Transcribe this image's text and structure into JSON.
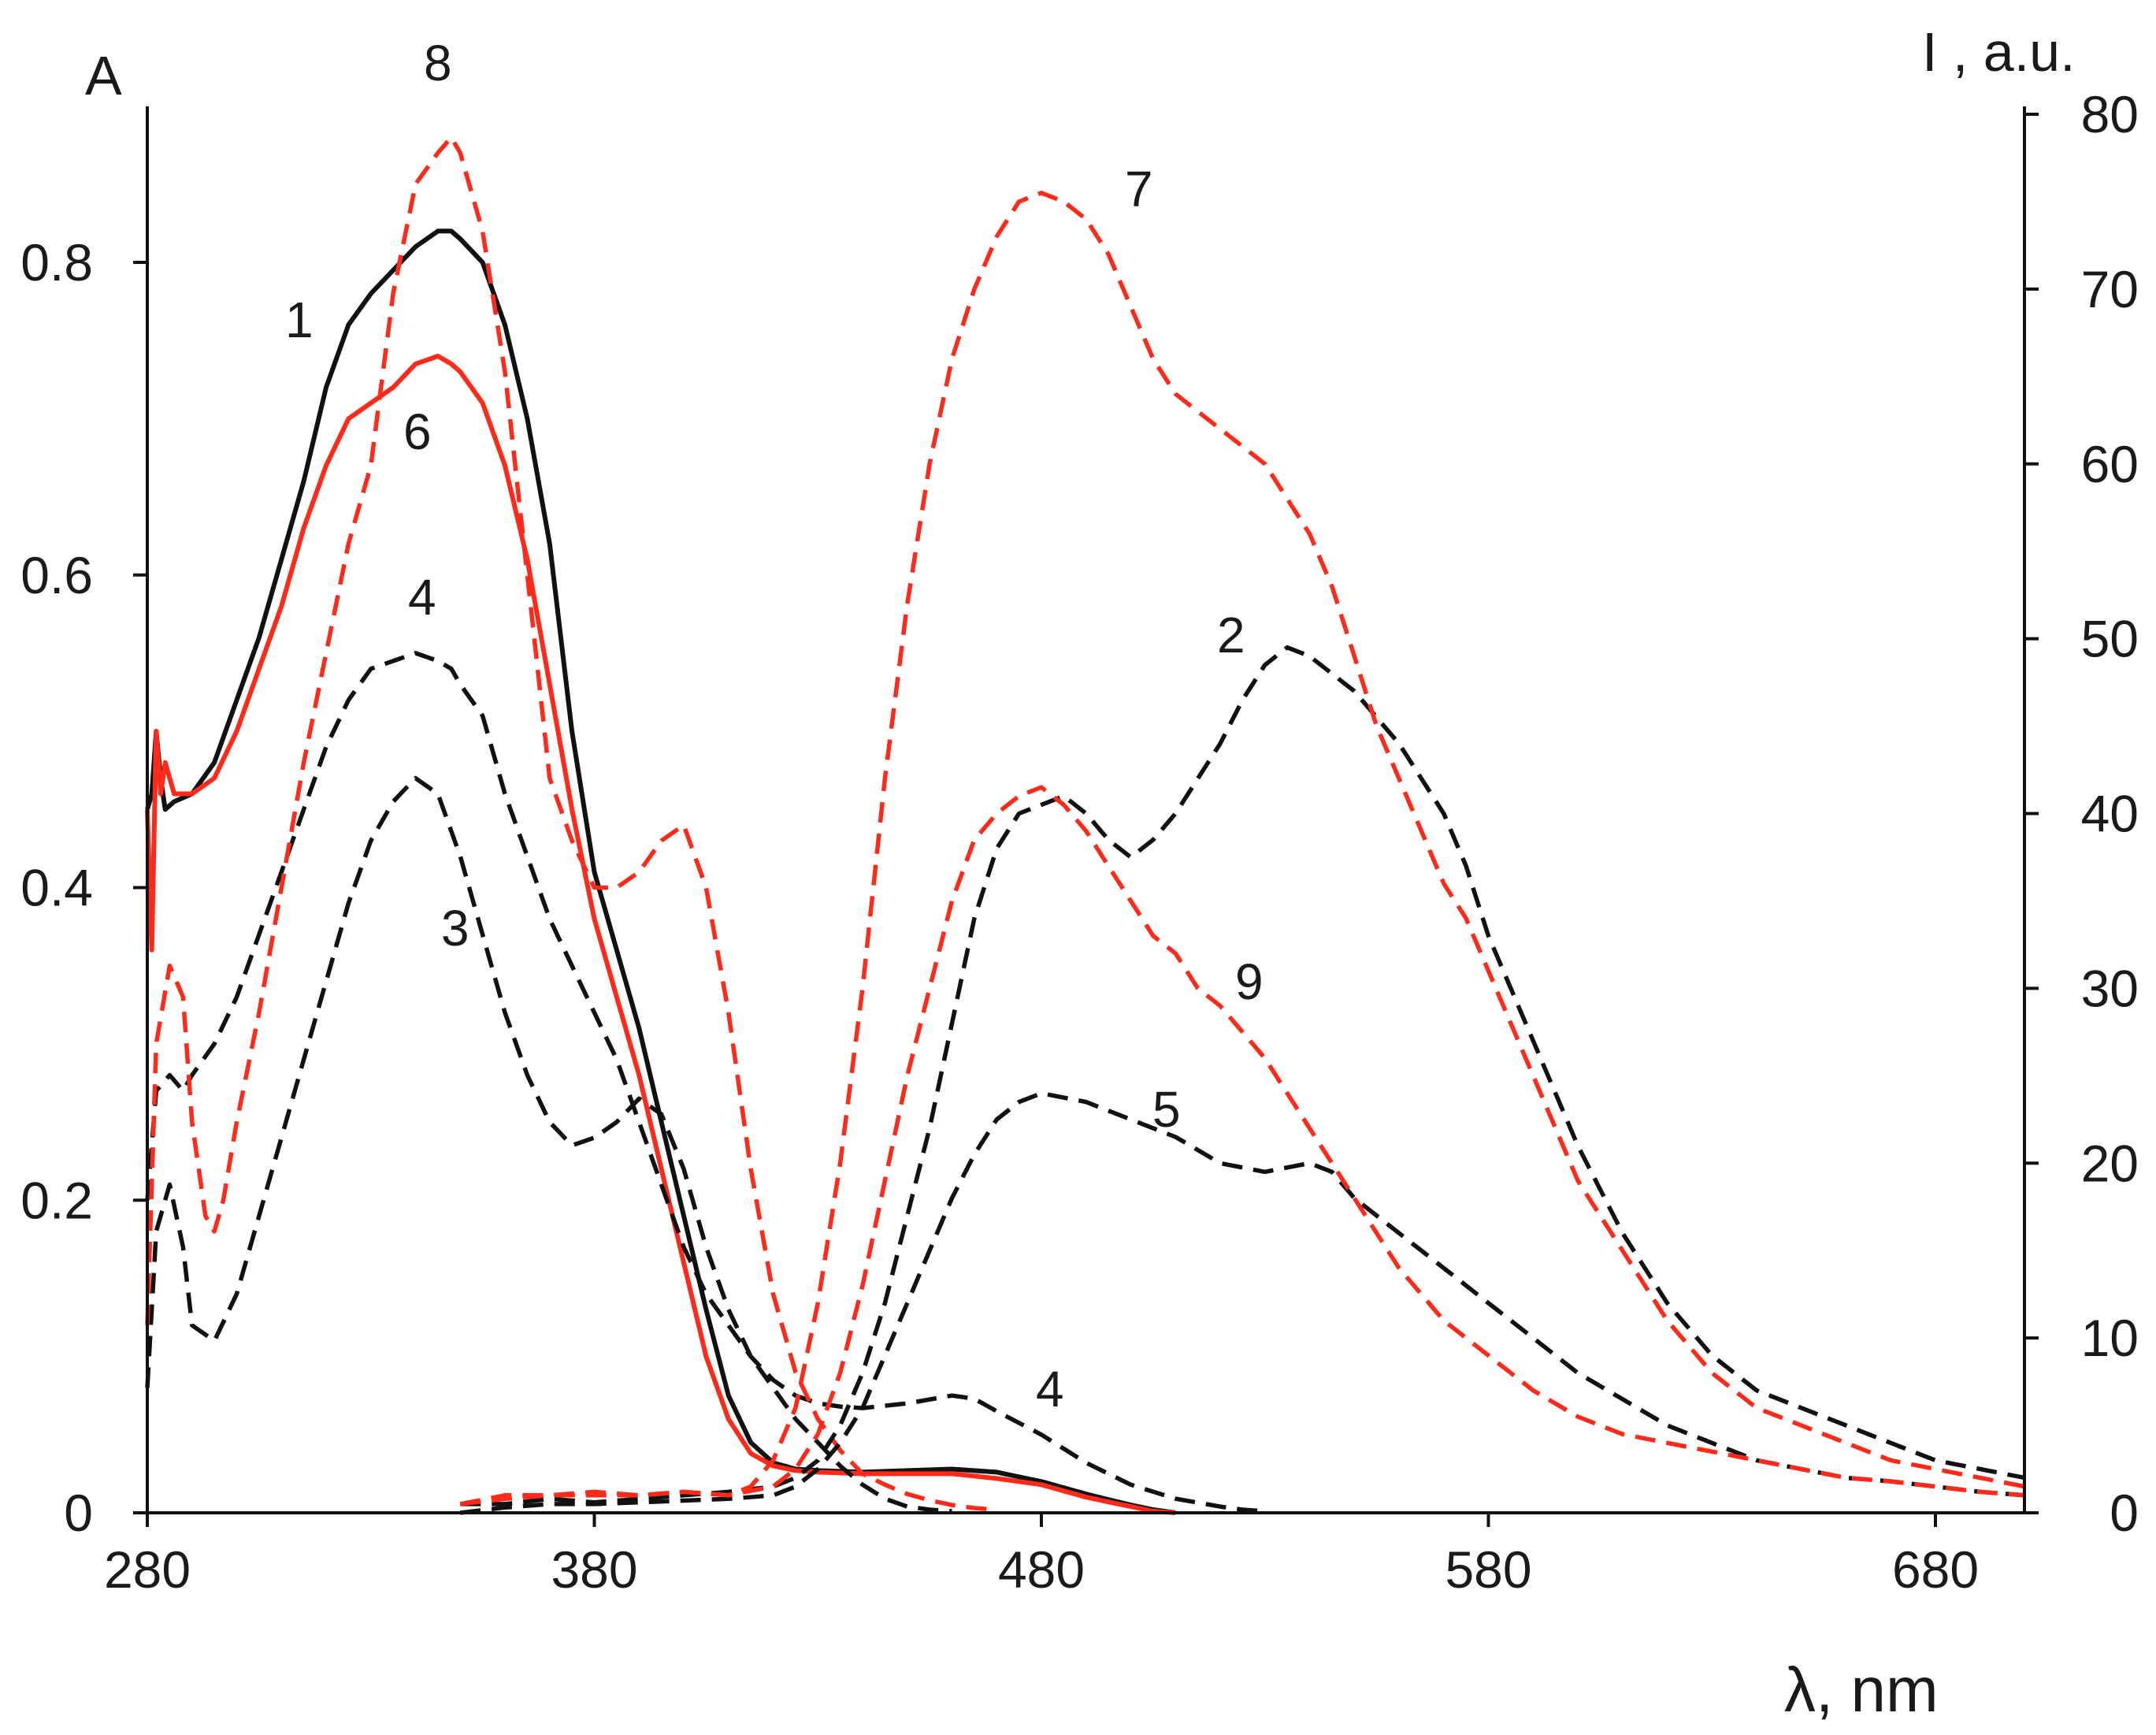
{
  "chart_data": {
    "type": "line",
    "x_axis": {
      "label": "λ, nm",
      "range": [
        280,
        700
      ],
      "ticks": [
        280,
        380,
        480,
        580,
        680
      ]
    },
    "y_left": {
      "label": "A",
      "range": [
        0,
        0.9
      ],
      "ticks": [
        0,
        0.2,
        0.4,
        0.6,
        0.8
      ],
      "tick_labels": [
        "0",
        "0.2",
        "0.4",
        "0.6",
        "0.8"
      ]
    },
    "y_right": {
      "label": "I , a.u.",
      "range": [
        0,
        80
      ],
      "ticks": [
        0,
        10,
        20,
        30,
        40,
        50,
        60,
        70,
        80
      ],
      "tick_labels": [
        "0",
        "10",
        "20",
        "30",
        "40",
        "50",
        "60",
        "70",
        "80"
      ]
    },
    "colors": {
      "black": "#111111",
      "red": "#ff2a1a"
    },
    "series": [
      {
        "name": "1",
        "axis": "left",
        "color": "black",
        "style": "solid",
        "x": [
          280,
          281,
          282,
          283,
          284,
          286,
          290,
          295,
          300,
          305,
          310,
          315,
          320,
          325,
          330,
          335,
          340,
          345,
          348,
          350,
          355,
          360,
          365,
          370,
          375,
          380,
          385,
          390,
          395,
          400,
          405,
          410,
          415,
          420,
          425,
          430,
          440,
          450,
          460,
          470,
          480,
          490,
          500,
          505,
          510
        ],
        "y": [
          0.45,
          0.46,
          0.5,
          0.47,
          0.45,
          0.455,
          0.46,
          0.48,
          0.52,
          0.56,
          0.61,
          0.66,
          0.72,
          0.76,
          0.78,
          0.795,
          0.81,
          0.82,
          0.82,
          0.815,
          0.8,
          0.76,
          0.7,
          0.62,
          0.5,
          0.41,
          0.36,
          0.31,
          0.25,
          0.19,
          0.13,
          0.075,
          0.045,
          0.032,
          0.028,
          0.027,
          0.026,
          0.027,
          0.028,
          0.026,
          0.02,
          0.012,
          0.005,
          0.002,
          0
        ]
      },
      {
        "name": "6",
        "axis": "left",
        "color": "red",
        "style": "solid",
        "x": [
          280,
          281,
          282,
          283,
          284,
          286,
          290,
          295,
          300,
          305,
          310,
          315,
          320,
          325,
          330,
          335,
          340,
          345,
          348,
          350,
          355,
          360,
          365,
          370,
          375,
          380,
          385,
          390,
          395,
          400,
          405,
          410,
          415,
          420,
          425,
          430,
          440,
          450,
          460,
          470,
          480,
          490,
          500,
          505,
          510
        ],
        "y": [
          0.45,
          0.36,
          0.5,
          0.46,
          0.48,
          0.46,
          0.46,
          0.47,
          0.5,
          0.54,
          0.58,
          0.63,
          0.67,
          0.7,
          0.71,
          0.72,
          0.735,
          0.74,
          0.735,
          0.73,
          0.71,
          0.67,
          0.61,
          0.53,
          0.45,
          0.38,
          0.33,
          0.28,
          0.22,
          0.16,
          0.1,
          0.06,
          0.038,
          0.03,
          0.027,
          0.026,
          0.025,
          0.025,
          0.025,
          0.022,
          0.018,
          0.01,
          0.004,
          0.001,
          0
        ]
      },
      {
        "name": "4",
        "axis": "left",
        "color": "black",
        "style": "dashed",
        "x": [
          280,
          282,
          285,
          288,
          290,
          295,
          300,
          305,
          310,
          315,
          320,
          325,
          330,
          335,
          340,
          345,
          348,
          350,
          355,
          360,
          365,
          370,
          375,
          380,
          385,
          390,
          395,
          400,
          405,
          410,
          415,
          420,
          425,
          430,
          435,
          440,
          450,
          460,
          465,
          470,
          480,
          490,
          500,
          510,
          520,
          525,
          530
        ],
        "y": [
          0.2,
          0.27,
          0.28,
          0.27,
          0.28,
          0.3,
          0.33,
          0.37,
          0.41,
          0.45,
          0.49,
          0.52,
          0.54,
          0.545,
          0.55,
          0.545,
          0.54,
          0.53,
          0.51,
          0.46,
          0.42,
          0.38,
          0.35,
          0.32,
          0.29,
          0.25,
          0.21,
          0.17,
          0.14,
          0.12,
          0.1,
          0.085,
          0.075,
          0.07,
          0.068,
          0.067,
          0.07,
          0.075,
          0.073,
          0.065,
          0.05,
          0.032,
          0.018,
          0.009,
          0.004,
          0.002,
          0.001
        ]
      },
      {
        "name": "3",
        "axis": "left",
        "color": "black",
        "style": "dashed",
        "x": [
          280,
          282,
          285,
          288,
          290,
          295,
          300,
          305,
          310,
          315,
          320,
          325,
          330,
          335,
          340,
          345,
          350,
          355,
          360,
          365,
          370,
          375,
          380,
          385,
          390,
          395,
          400,
          405,
          410,
          415,
          420,
          425,
          430,
          435,
          440,
          445,
          450,
          455,
          460
        ],
        "y": [
          0.08,
          0.18,
          0.21,
          0.17,
          0.12,
          0.11,
          0.14,
          0.19,
          0.24,
          0.29,
          0.34,
          0.39,
          0.43,
          0.455,
          0.47,
          0.46,
          0.42,
          0.37,
          0.32,
          0.28,
          0.25,
          0.235,
          0.24,
          0.25,
          0.265,
          0.255,
          0.22,
          0.17,
          0.13,
          0.1,
          0.08,
          0.06,
          0.045,
          0.03,
          0.018,
          0.009,
          0.004,
          0.002,
          0.001
        ]
      },
      {
        "name": "8",
        "axis": "left",
        "color": "red",
        "style": "dashed",
        "x": [
          280,
          282,
          285,
          288,
          290,
          293,
          295,
          297,
          300,
          305,
          310,
          315,
          320,
          325,
          330,
          335,
          340,
          345,
          348,
          350,
          355,
          360,
          365,
          370,
          375,
          380,
          385,
          390,
          395,
          400,
          405,
          410,
          415,
          420,
          425,
          430,
          435,
          440,
          445,
          450,
          455,
          460,
          465,
          470
        ],
        "y": [
          0.12,
          0.3,
          0.35,
          0.33,
          0.25,
          0.19,
          0.18,
          0.2,
          0.25,
          0.32,
          0.4,
          0.48,
          0.55,
          0.62,
          0.67,
          0.78,
          0.85,
          0.87,
          0.88,
          0.87,
          0.82,
          0.73,
          0.6,
          0.47,
          0.43,
          0.4,
          0.4,
          0.41,
          0.43,
          0.44,
          0.4,
          0.32,
          0.22,
          0.14,
          0.09,
          0.06,
          0.04,
          0.025,
          0.018,
          0.012,
          0.008,
          0.005,
          0.003,
          0.002
        ]
      },
      {
        "name": "2",
        "axis": "right",
        "color": "black",
        "style": "dashed",
        "x": [
          350,
          360,
          370,
          380,
          390,
          400,
          410,
          420,
          425,
          430,
          435,
          440,
          445,
          450,
          455,
          460,
          465,
          470,
          475,
          480,
          485,
          490,
          495,
          500,
          505,
          510,
          515,
          520,
          525,
          530,
          535,
          540,
          545,
          550,
          555,
          560,
          565,
          570,
          575,
          580,
          590,
          600,
          610,
          620,
          630,
          640,
          650,
          660,
          670,
          680,
          690,
          700
        ],
        "y": [
          0.5,
          0.5,
          0.8,
          0.6,
          0.8,
          1.0,
          1.2,
          1.5,
          2.0,
          3.0,
          5.0,
          8.0,
          12.0,
          17.0,
          22.0,
          28.0,
          34.0,
          38.0,
          40.0,
          40.5,
          41.0,
          40.0,
          38.5,
          37.5,
          38.5,
          40.0,
          42.0,
          44.0,
          46.5,
          48.5,
          49.5,
          49.0,
          48.0,
          47.0,
          45.5,
          44.0,
          42.0,
          40.0,
          37.0,
          33.0,
          27.0,
          21.0,
          16.0,
          12.0,
          9.0,
          7.0,
          6.0,
          5.0,
          4.0,
          3.0,
          2.5,
          2.0
        ]
      },
      {
        "name": "5",
        "axis": "right",
        "color": "black",
        "style": "dashed",
        "x": [
          350,
          360,
          370,
          380,
          390,
          400,
          410,
          420,
          425,
          430,
          435,
          440,
          445,
          450,
          455,
          460,
          465,
          470,
          475,
          480,
          490,
          500,
          510,
          520,
          530,
          540,
          545,
          550,
          555,
          560,
          570,
          580,
          590,
          600,
          610,
          620,
          630,
          640,
          650,
          660,
          670,
          680,
          690,
          700
        ],
        "y": [
          0,
          0.3,
          0.5,
          0.5,
          0.6,
          0.7,
          0.8,
          1.0,
          1.5,
          2.5,
          4.0,
          6.0,
          9.0,
          12.0,
          15.0,
          18.0,
          20.5,
          22.5,
          23.5,
          24.0,
          23.5,
          22.5,
          21.5,
          20.0,
          19.5,
          20.0,
          19.5,
          18.0,
          17.0,
          16.0,
          14.0,
          12.0,
          10.0,
          8.0,
          6.5,
          5.0,
          4.0,
          3.0,
          2.5,
          2.0,
          1.8,
          1.5,
          1.2,
          1.0
        ]
      },
      {
        "name": "7",
        "axis": "right",
        "color": "red",
        "style": "dashed",
        "x": [
          350,
          360,
          370,
          380,
          390,
          400,
          410,
          415,
          420,
          425,
          430,
          435,
          440,
          445,
          450,
          455,
          460,
          465,
          470,
          475,
          480,
          485,
          490,
          495,
          500,
          505,
          510,
          515,
          520,
          525,
          530,
          535,
          540,
          545,
          550,
          555,
          560,
          565,
          570,
          575,
          580,
          590,
          600,
          610,
          620,
          630,
          640,
          650,
          660,
          670,
          680,
          690,
          700
        ],
        "y": [
          0.5,
          1.0,
          1.0,
          1.2,
          1.0,
          1.2,
          1.0,
          1.5,
          3.0,
          6.0,
          12.0,
          20.0,
          30.0,
          42.0,
          52.0,
          60.0,
          66.0,
          70.0,
          73.0,
          75.0,
          75.5,
          75.0,
          74.0,
          72.0,
          69.0,
          66.0,
          64.0,
          63.0,
          62.0,
          61.0,
          60.0,
          58.0,
          56.0,
          53.0,
          49.0,
          45.0,
          42.0,
          39.0,
          36.0,
          34.0,
          31.0,
          25.0,
          19.0,
          15.0,
          11.0,
          8.0,
          6.0,
          5.0,
          4.0,
          3.0,
          2.5,
          2.0,
          1.5
        ]
      },
      {
        "name": "9",
        "axis": "right",
        "color": "red",
        "style": "dashed",
        "x": [
          350,
          360,
          370,
          380,
          390,
          400,
          410,
          420,
          425,
          430,
          435,
          440,
          445,
          450,
          455,
          460,
          465,
          470,
          475,
          480,
          485,
          490,
          495,
          500,
          505,
          510,
          515,
          520,
          525,
          530,
          535,
          540,
          545,
          550,
          555,
          560,
          570,
          580,
          590,
          600,
          610,
          620,
          630,
          640,
          650,
          660,
          670,
          680,
          690,
          700
        ],
        "y": [
          0.5,
          0.8,
          1.0,
          1.0,
          1.0,
          1.2,
          1.0,
          1.5,
          2.5,
          4.5,
          8.0,
          13.0,
          19.0,
          25.0,
          30.0,
          35.0,
          38.5,
          40.0,
          41.0,
          41.5,
          40.5,
          39.0,
          37.0,
          35.0,
          33.0,
          32.0,
          30.0,
          29.0,
          27.5,
          26.0,
          24.0,
          22.0,
          20.0,
          18.0,
          16.0,
          14.0,
          11.0,
          9.0,
          7.0,
          5.5,
          4.5,
          4.0,
          3.5,
          3.0,
          2.5,
          2.0,
          1.8,
          1.5,
          1.2,
          1.0
        ]
      }
    ],
    "annotations": [
      "1",
      "6",
      "8",
      "4",
      "3",
      "7",
      "2",
      "9",
      "5",
      "4"
    ]
  }
}
